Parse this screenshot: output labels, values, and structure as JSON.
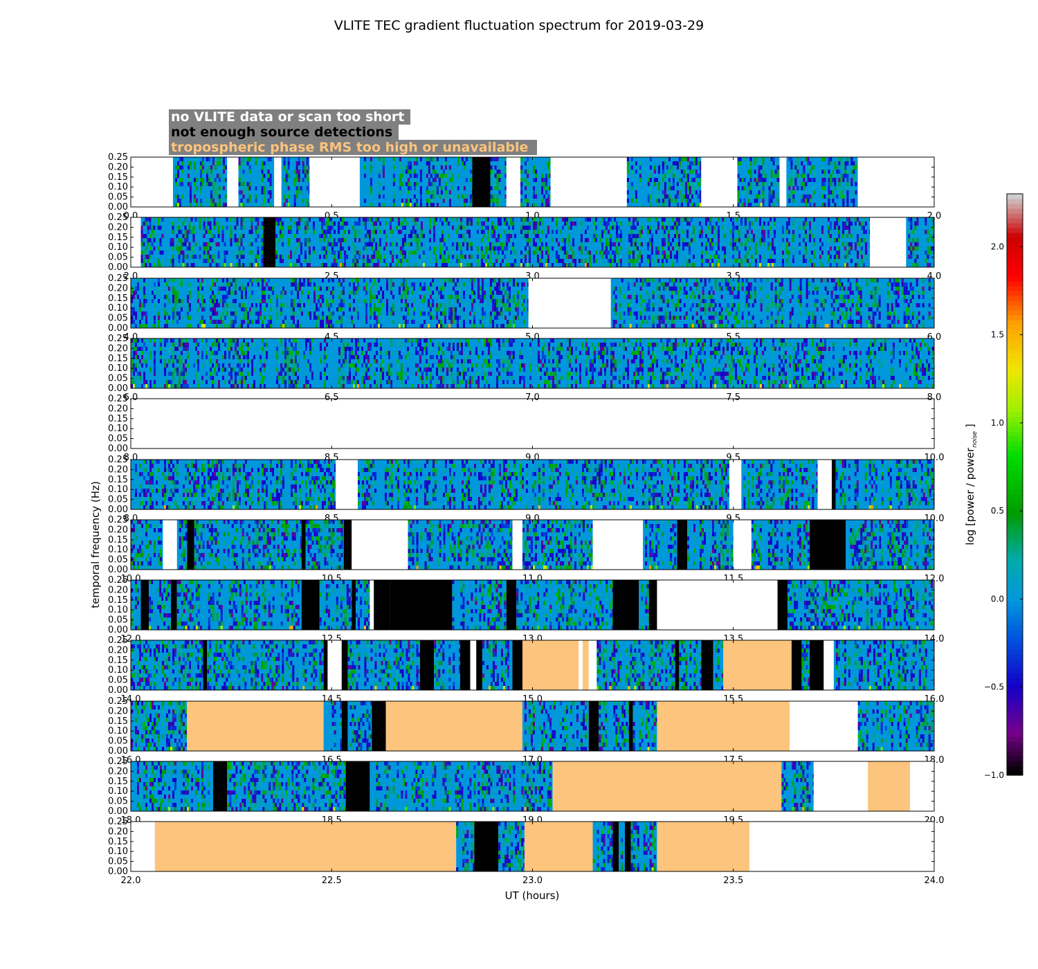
{
  "chart_data": {
    "type": "heatmap",
    "title": "VLITE TEC gradient fluctuation spectrum for 2019-03-29",
    "xlabel": "UT (hours)",
    "ylabel": "temporal frequency (Hz)",
    "colorbar_label": "log [power / power",
    "colorbar_label_sub": "noise",
    "colorbar_label_close": "]",
    "colorbar_range": [
      -1.0,
      2.3
    ],
    "colorbar_ticks": [
      "−1.0",
      "−0.5",
      "0.0",
      "0.5",
      "1.0",
      "1.5",
      "2.0"
    ],
    "colorbar_tick_values": [
      -1.0,
      -0.5,
      0.0,
      0.5,
      1.0,
      1.5,
      2.0
    ],
    "ylim": [
      0,
      0.25
    ],
    "yticks": [
      "0.00",
      "0.05",
      "0.10",
      "0.15",
      "0.20",
      "0.25"
    ],
    "colormap": "nipy_spectral",
    "legend": {
      "placement": "top-left",
      "box_color": "#808080",
      "entries": [
        {
          "text": "no VLITE data or scan too short",
          "color": "#ffffff",
          "fill": "#ffffff"
        },
        {
          "text": "not enough source detections",
          "color": "#000000",
          "fill": "#000000"
        },
        {
          "text": "tropospheric phase RMS too high or unavailable",
          "color": "#fcc47d",
          "fill": "#fcc47d"
        }
      ]
    },
    "panels": [
      {
        "xlim": [
          0,
          2
        ],
        "xticks": [
          "0.0",
          "0.5",
          "1.0",
          "1.5",
          "2.0"
        ],
        "segments": [
          [
            0,
            0.105,
            "none"
          ],
          [
            0.105,
            0.24,
            "data"
          ],
          [
            0.24,
            0.268,
            "none"
          ],
          [
            0.268,
            0.357,
            "data"
          ],
          [
            0.357,
            0.375,
            "none"
          ],
          [
            0.375,
            0.445,
            "data"
          ],
          [
            0.445,
            0.57,
            "none"
          ],
          [
            0.57,
            0.85,
            "data"
          ],
          [
            0.85,
            0.895,
            "det"
          ],
          [
            0.895,
            0.935,
            "data"
          ],
          [
            0.935,
            0.97,
            "none"
          ],
          [
            0.97,
            1.045,
            "data"
          ],
          [
            1.045,
            1.235,
            "none"
          ],
          [
            1.235,
            1.42,
            "data"
          ],
          [
            1.42,
            1.51,
            "none"
          ],
          [
            1.51,
            1.615,
            "data"
          ],
          [
            1.615,
            1.632,
            "none"
          ],
          [
            1.632,
            1.81,
            "data"
          ],
          [
            1.81,
            2,
            "none"
          ]
        ]
      },
      {
        "xlim": [
          2,
          4
        ],
        "xticks": [
          "2.0",
          "2.5",
          "3.0",
          "3.5",
          "4.0"
        ],
        "segments": [
          [
            2,
            2.025,
            "none"
          ],
          [
            2.025,
            2.33,
            "data"
          ],
          [
            2.33,
            2.36,
            "det"
          ],
          [
            2.36,
            3.84,
            "data"
          ],
          [
            3.84,
            3.93,
            "none"
          ],
          [
            3.93,
            4,
            "data"
          ]
        ]
      },
      {
        "xlim": [
          4,
          6
        ],
        "xticks": [
          "4.0",
          "4.5",
          "5.0",
          "5.5",
          "6.0"
        ],
        "segments": [
          [
            4,
            4.99,
            "data"
          ],
          [
            4.99,
            5.195,
            "none"
          ],
          [
            5.195,
            6,
            "data"
          ]
        ]
      },
      {
        "xlim": [
          6,
          8
        ],
        "xticks": [
          "6.0",
          "6.5",
          "7.0",
          "7.5",
          "8.0"
        ],
        "segments": [
          [
            6,
            8,
            "data"
          ]
        ]
      },
      {
        "xlim": [
          8,
          10
        ],
        "xticks": [
          "8.0",
          "8.5",
          "9.0",
          "9.5",
          "10.0"
        ],
        "segments": [
          [
            8,
            7.003,
            "data"
          ],
          [
            7.003,
            7.03,
            "none"
          ],
          [
            7.03,
            8,
            "data"
          ]
        ]
      },
      {
        "xlim": [
          8,
          10
        ],
        "xticks": [
          "8.0",
          "8.5",
          "9.0",
          "9.5",
          "10.0"
        ],
        "segments": [
          [
            8,
            8.51,
            "data"
          ],
          [
            8.51,
            8.565,
            "none"
          ],
          [
            8.565,
            9.49,
            "data"
          ],
          [
            9.49,
            9.52,
            "none"
          ],
          [
            9.52,
            9.71,
            "data"
          ],
          [
            9.71,
            9.745,
            "none"
          ],
          [
            9.745,
            9.755,
            "det"
          ],
          [
            9.755,
            10,
            "data"
          ]
        ]
      },
      {
        "xlim": [
          10,
          12
        ],
        "xticks": [
          "10.0",
          "10.5",
          "11.0",
          "11.5",
          "12.0"
        ],
        "segments": [
          [
            10,
            10.08,
            "data"
          ],
          [
            10.08,
            10.115,
            "none"
          ],
          [
            10.115,
            10.14,
            "data"
          ],
          [
            10.14,
            10.158,
            "det"
          ],
          [
            10.158,
            10.425,
            "data"
          ],
          [
            10.425,
            10.435,
            "det"
          ],
          [
            10.435,
            10.53,
            "data"
          ],
          [
            10.53,
            10.55,
            "det"
          ],
          [
            10.55,
            10.69,
            "none"
          ],
          [
            10.69,
            10.95,
            "data"
          ],
          [
            10.95,
            10.975,
            "none"
          ],
          [
            10.975,
            11.15,
            "data"
          ],
          [
            11.15,
            11.275,
            "none"
          ],
          [
            11.275,
            11.36,
            "data"
          ],
          [
            11.36,
            11.385,
            "det"
          ],
          [
            11.385,
            11.5,
            "data"
          ],
          [
            11.5,
            11.545,
            "none"
          ],
          [
            11.545,
            11.69,
            "data"
          ],
          [
            11.69,
            11.78,
            "det"
          ],
          [
            11.78,
            12,
            "data"
          ]
        ]
      },
      {
        "xlim": [
          12,
          14
        ],
        "xticks": [
          "12.0",
          "12.5",
          "13.0",
          "13.5",
          "14.0"
        ],
        "segments": [
          [
            12,
            12.025,
            "data"
          ],
          [
            12.025,
            12.045,
            "det"
          ],
          [
            12.045,
            12.1,
            "data"
          ],
          [
            12.1,
            12.115,
            "det"
          ],
          [
            12.115,
            12.425,
            "data"
          ],
          [
            12.425,
            12.47,
            "det"
          ],
          [
            12.47,
            12.55,
            "data"
          ],
          [
            12.55,
            12.56,
            "det"
          ],
          [
            12.56,
            12.595,
            "data"
          ],
          [
            12.595,
            12.605,
            "none"
          ],
          [
            12.605,
            12.645,
            "det"
          ],
          [
            12.645,
            12.8,
            "det"
          ],
          [
            12.8,
            12.935,
            "data"
          ],
          [
            12.935,
            12.96,
            "det"
          ],
          [
            12.96,
            13.2,
            "data"
          ],
          [
            13.2,
            13.265,
            "det"
          ],
          [
            13.265,
            13.29,
            "data"
          ],
          [
            13.29,
            13.31,
            "det"
          ],
          [
            13.31,
            13.61,
            "none"
          ],
          [
            13.61,
            13.635,
            "det"
          ],
          [
            13.635,
            14,
            "data"
          ]
        ]
      },
      {
        "xlim": [
          14,
          16
        ],
        "xticks": [
          "14.0",
          "14.5",
          "15.0",
          "15.5",
          "16.0"
        ],
        "segments": [
          [
            14,
            14.18,
            "data"
          ],
          [
            14.18,
            14.19,
            "det"
          ],
          [
            14.19,
            14.48,
            "data"
          ],
          [
            14.48,
            14.49,
            "det"
          ],
          [
            14.49,
            14.525,
            "none"
          ],
          [
            14.525,
            14.54,
            "det"
          ],
          [
            14.54,
            14.72,
            "data"
          ],
          [
            14.72,
            14.755,
            "det"
          ],
          [
            14.755,
            14.82,
            "data"
          ],
          [
            14.82,
            14.845,
            "det"
          ],
          [
            14.845,
            14.86,
            "none"
          ],
          [
            14.86,
            14.875,
            "det"
          ],
          [
            14.875,
            14.95,
            "data"
          ],
          [
            14.95,
            14.975,
            "det"
          ],
          [
            14.975,
            15.115,
            "rms"
          ],
          [
            15.115,
            15.125,
            "none"
          ],
          [
            15.125,
            15.14,
            "rms"
          ],
          [
            15.14,
            15.16,
            "none"
          ],
          [
            15.16,
            15.355,
            "data"
          ],
          [
            15.355,
            15.365,
            "det"
          ],
          [
            15.365,
            15.42,
            "data"
          ],
          [
            15.42,
            15.45,
            "det"
          ],
          [
            15.45,
            15.475,
            "data"
          ],
          [
            15.475,
            15.645,
            "rms"
          ],
          [
            15.645,
            15.67,
            "det"
          ],
          [
            15.67,
            15.69,
            "data"
          ],
          [
            15.69,
            15.725,
            "det"
          ],
          [
            15.725,
            15.75,
            "none"
          ],
          [
            15.75,
            16,
            "data"
          ]
        ]
      },
      {
        "xlim": [
          16,
          18
        ],
        "xticks": [
          "16.0",
          "16.5",
          "17.0",
          "17.5",
          "18.0"
        ],
        "segments": [
          [
            16,
            16.14,
            "data"
          ],
          [
            16.14,
            16.48,
            "rms"
          ],
          [
            16.48,
            16.525,
            "data"
          ],
          [
            16.525,
            16.54,
            "det"
          ],
          [
            16.54,
            16.6,
            "data"
          ],
          [
            16.6,
            16.635,
            "det"
          ],
          [
            16.635,
            16.975,
            "rms"
          ],
          [
            16.975,
            17.14,
            "data"
          ],
          [
            17.14,
            17.165,
            "det"
          ],
          [
            17.165,
            17.24,
            "data"
          ],
          [
            17.24,
            17.25,
            "det"
          ],
          [
            17.25,
            17.31,
            "data"
          ],
          [
            17.31,
            17.64,
            "rms"
          ],
          [
            17.64,
            17.81,
            "none"
          ],
          [
            17.81,
            18,
            "data"
          ]
        ]
      },
      {
        "xlim": [
          18,
          20
        ],
        "xticks": [
          "18.0",
          "18.5",
          "19.0",
          "19.5",
          "20.0"
        ],
        "segments": [
          [
            18,
            18.205,
            "data"
          ],
          [
            18.205,
            18.24,
            "det"
          ],
          [
            18.24,
            18.535,
            "data"
          ],
          [
            18.535,
            18.595,
            "det"
          ],
          [
            18.595,
            18.98,
            "data"
          ],
          [
            18.98,
            19.05,
            "data"
          ],
          [
            19.05,
            19.62,
            "rms"
          ],
          [
            19.62,
            19.7,
            "data"
          ],
          [
            19.7,
            19.835,
            "none"
          ],
          [
            19.835,
            19.94,
            "rms"
          ],
          [
            19.94,
            20,
            "none"
          ]
        ]
      },
      {
        "xlim": [
          20,
          22
        ],
        "xticks": [
          "20.0",
          "20.5",
          "21.0",
          "21.5",
          "22.0"
        ],
        "segments": [
          [
            20,
            20.06,
            "none"
          ],
          [
            20.06,
            20.81,
            "rms"
          ],
          [
            20.81,
            20.855,
            "data"
          ],
          [
            20.855,
            20.915,
            "det"
          ],
          [
            20.915,
            20.98,
            "data"
          ],
          [
            20.98,
            21.15,
            "rms"
          ],
          [
            21.15,
            21.2,
            "data"
          ],
          [
            21.2,
            21.215,
            "det"
          ],
          [
            21.215,
            21.23,
            "data"
          ],
          [
            21.23,
            21.245,
            "det"
          ],
          [
            21.245,
            21.31,
            "data"
          ],
          [
            21.31,
            21.54,
            "rms"
          ],
          [
            21.54,
            22,
            "none"
          ]
        ]
      }
    ],
    "bottom_xticks": [
      "22.0",
      "22.5",
      "23.0",
      "23.5",
      "24.0"
    ]
  }
}
